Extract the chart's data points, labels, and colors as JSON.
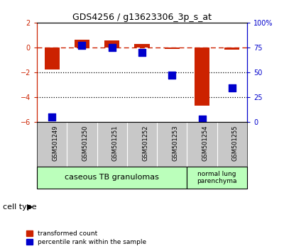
{
  "title": "GDS4256 / g13623306_3p_s_at",
  "samples": [
    "GSM501249",
    "GSM501250",
    "GSM501251",
    "GSM501252",
    "GSM501253",
    "GSM501254",
    "GSM501255"
  ],
  "red_values": [
    -1.8,
    0.6,
    0.55,
    0.25,
    -0.1,
    -4.7,
    -0.2
  ],
  "blue_values": [
    5.0,
    77.0,
    75.0,
    70.0,
    47.0,
    2.5,
    34.0
  ],
  "ylim_left": [
    -6,
    2
  ],
  "ylim_right": [
    0,
    100
  ],
  "yticks_left": [
    2,
    0,
    -2,
    -4,
    -6
  ],
  "yticks_right": [
    100,
    75,
    50,
    25,
    0
  ],
  "ytick_right_labels": [
    "100%",
    "75",
    "50",
    "25",
    "0"
  ],
  "red_color": "#cc2200",
  "blue_color": "#0000cc",
  "bar_width": 0.5,
  "group1_label": "caseous TB granulomas",
  "group2_label": "normal lung\nparenchyma",
  "group_color": "#bbffbb",
  "legend_red": "transformed count",
  "legend_blue": "percentile rank within the sample",
  "cell_type_label": "cell type",
  "bg_color": "#ffffff",
  "tick_bg_color": "#c8c8c8"
}
